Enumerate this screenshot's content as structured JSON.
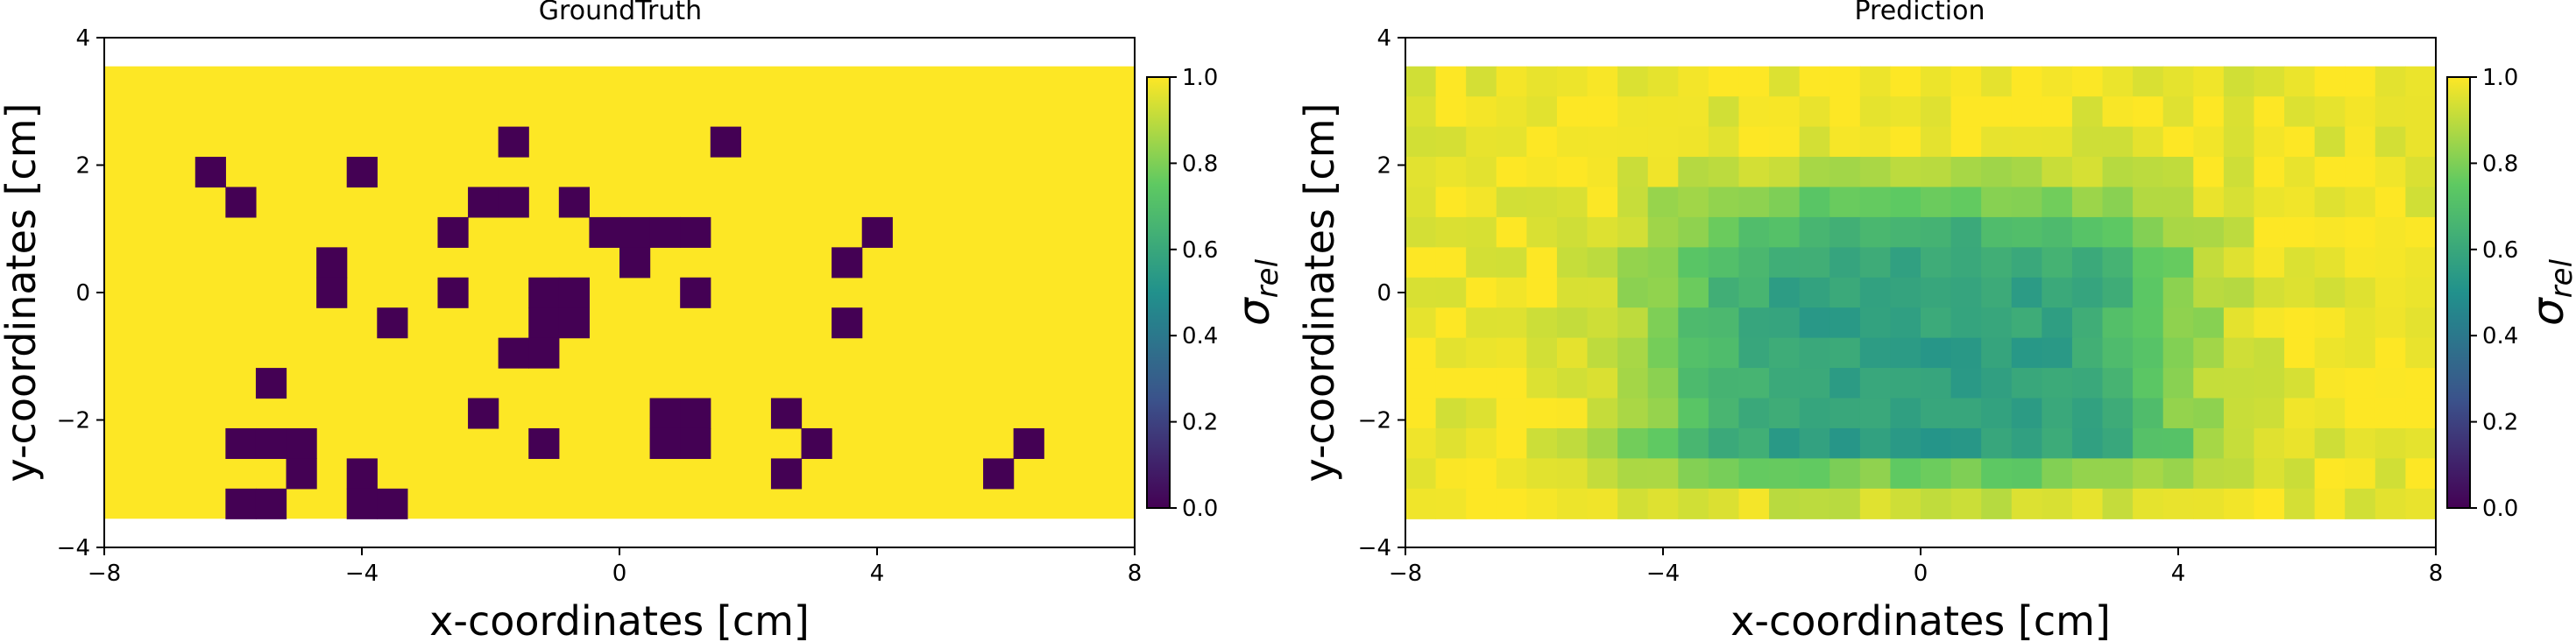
{
  "colors": {
    "viridis_stops": [
      "#440154",
      "#3b528b",
      "#21918c",
      "#5ec962",
      "#fde725"
    ],
    "axes": "#000000",
    "background": "#ffffff"
  },
  "chart_data": [
    {
      "type": "heatmap",
      "title": "GroundTruth",
      "xlabel": "x-coordinates [cm]",
      "ylabel": "y-coordinates [cm]",
      "xlim": [
        -8,
        8
      ],
      "ylim": [
        -4,
        4
      ],
      "extent": [
        -8,
        8,
        -3.55,
        3.55
      ],
      "xticks": [
        "-8",
        "-4",
        "0",
        "4",
        "8"
      ],
      "yticks": [
        "-4",
        "-2",
        "0",
        "2",
        "4"
      ],
      "colorbar": {
        "label": "σ",
        "subscript": "rel",
        "range": [
          0.0,
          1.0
        ],
        "ticks": [
          "0.0",
          "0.2",
          "0.4",
          "0.6",
          "0.8",
          "1.0"
        ]
      },
      "grid": {
        "cols": 34,
        "rows": 15
      },
      "background_value": 1.0,
      "cells_value": 0.0,
      "cells": [
        [
          3,
          3
        ],
        [
          13,
          2
        ],
        [
          20,
          2
        ],
        [
          4,
          4
        ],
        [
          8,
          3
        ],
        [
          12,
          4
        ],
        [
          13,
          4
        ],
        [
          15,
          4
        ],
        [
          11,
          5
        ],
        [
          16,
          5
        ],
        [
          17,
          5
        ],
        [
          18,
          5
        ],
        [
          19,
          5
        ],
        [
          25,
          5
        ],
        [
          7,
          6
        ],
        [
          17,
          6
        ],
        [
          24,
          6
        ],
        [
          7,
          7
        ],
        [
          11,
          7
        ],
        [
          14,
          7
        ],
        [
          15,
          7
        ],
        [
          19,
          7
        ],
        [
          9,
          8
        ],
        [
          14,
          8
        ],
        [
          15,
          8
        ],
        [
          24,
          8
        ],
        [
          13,
          9
        ],
        [
          14,
          9
        ],
        [
          5,
          10
        ],
        [
          12,
          11
        ],
        [
          18,
          11
        ],
        [
          19,
          11
        ],
        [
          22,
          11
        ],
        [
          4,
          12
        ],
        [
          5,
          12
        ],
        [
          6,
          12
        ],
        [
          14,
          12
        ],
        [
          18,
          12
        ],
        [
          19,
          12
        ],
        [
          23,
          12
        ],
        [
          30,
          12
        ],
        [
          6,
          13
        ],
        [
          8,
          13
        ],
        [
          22,
          13
        ],
        [
          29,
          13
        ],
        [
          4,
          14
        ],
        [
          5,
          14
        ],
        [
          8,
          14
        ],
        [
          9,
          14
        ]
      ]
    },
    {
      "type": "heatmap",
      "title": "Prediction",
      "xlabel": "x-coordinates [cm]",
      "ylabel": "y-coordinates [cm]",
      "xlim": [
        -8,
        8
      ],
      "ylim": [
        -4,
        4
      ],
      "extent": [
        -8,
        8,
        -3.55,
        3.55
      ],
      "xticks": [
        "-8",
        "-4",
        "0",
        "4",
        "8"
      ],
      "yticks": [
        "-4",
        "-2",
        "0",
        "2",
        "4"
      ],
      "colorbar": {
        "label": "σ",
        "subscript": "rel",
        "range": [
          0.0,
          1.0
        ],
        "ticks": [
          "0.0",
          "0.2",
          "0.4",
          "0.6",
          "0.8",
          "1.0"
        ]
      },
      "grid": {
        "cols": 34,
        "rows": 15
      },
      "field": {
        "description_values": "approximately 0.95 at the border decreasing to about 0.55 in the central region (x between -2 and 2, y between -2 and 1); values near 0.62 along y = -2.5 for x between -4 and 4",
        "center_min": 0.55,
        "border_max": 0.98
      }
    }
  ]
}
